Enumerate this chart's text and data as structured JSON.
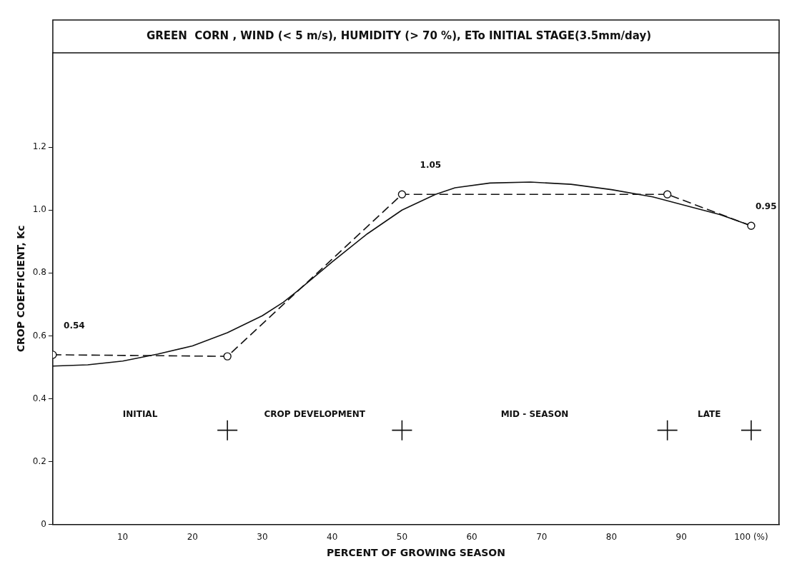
{
  "chart_data": {
    "type": "line",
    "title": "GREEN  CORN , WIND (< 5 m/s), HUMIDITY (> 70 %), ETo INITIAL STAGE(3.5mm/day)",
    "xlabel": "PERCENT OF GROWING SEASON",
    "ylabel": "CROP COEFFICIENT, Kc",
    "xlim": [
      0,
      104
    ],
    "xticks": [
      10,
      20,
      30,
      40,
      50,
      60,
      70,
      80,
      90,
      {
        "value": 100,
        "label": "100 (%)"
      }
    ],
    "ylim": [
      0,
      1.5
    ],
    "yticks": [
      0,
      0.2,
      0.4,
      0.6,
      0.8,
      {
        "value": 1,
        "label": "1.0"
      },
      1.2
    ],
    "grid": false,
    "legend": false,
    "series": [
      {
        "color": "#111111",
        "line_style": "dashed",
        "marker": "circle",
        "x": [
          0,
          25,
          50,
          88,
          100
        ],
        "values": [
          0.54,
          0.535,
          1.05,
          1.05,
          0.95
        ],
        "value_labels": [
          "0.54",
          null,
          "1.05",
          null,
          "0.95"
        ]
      },
      {
        "color": "#111111",
        "line_style": "solid",
        "marker": "none",
        "x": [
          0,
          5,
          10,
          15,
          20,
          25,
          30,
          33,
          35,
          40,
          45,
          50,
          54.8,
          57.6,
          62.6,
          68.4,
          74.2,
          80,
          85.9,
          91.7,
          95.5,
          100
        ],
        "values": [
          0.504,
          0.508,
          0.52,
          0.542,
          0.568,
          0.61,
          0.664,
          0.707,
          0.742,
          0.835,
          0.924,
          1.0,
          1.05,
          1.071,
          1.086,
          1.089,
          1.082,
          1.065,
          1.042,
          1.008,
          0.986,
          0.95
        ]
      },
      {
        "type": "scatter",
        "color": "#111111",
        "marker": "cross",
        "x": [
          25,
          50,
          88,
          100
        ],
        "values": [
          0.3,
          0.3,
          0.3,
          0.3
        ]
      }
    ],
    "annotations": [
      "INITIAL",
      "CROP DEVELOPMENT",
      "MID - SEASON",
      "LATE"
    ]
  }
}
